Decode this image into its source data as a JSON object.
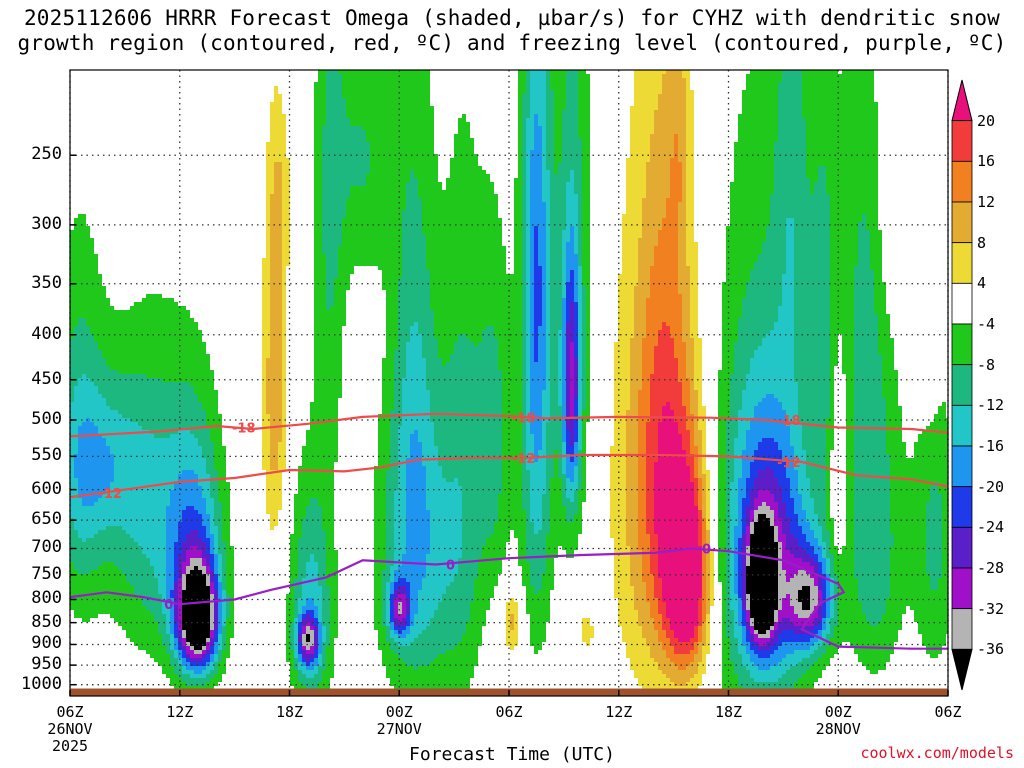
{
  "chart_data": {
    "type": "heatmap",
    "title_line1": "2025112606 HRRR Forecast Omega (shaded, µbar/s) for CYHZ with dendritic snow",
    "title_line2": "growth region (contoured, red, ºC) and freezing level (contoured, purple, ºC)",
    "xlabel": "Forecast Time (UTC)",
    "ylabel": "",
    "credit": "coolwx.com/models",
    "x_ticks": [
      {
        "hour": 0,
        "label": "06Z",
        "sub1": "26NOV",
        "sub2": "2025"
      },
      {
        "hour": 6,
        "label": "12Z",
        "sub1": "",
        "sub2": ""
      },
      {
        "hour": 12,
        "label": "18Z",
        "sub1": "",
        "sub2": ""
      },
      {
        "hour": 18,
        "label": "00Z",
        "sub1": "27NOV",
        "sub2": ""
      },
      {
        "hour": 24,
        "label": "06Z",
        "sub1": "",
        "sub2": ""
      },
      {
        "hour": 30,
        "label": "12Z",
        "sub1": "",
        "sub2": ""
      },
      {
        "hour": 36,
        "label": "18Z",
        "sub1": "",
        "sub2": ""
      },
      {
        "hour": 42,
        "label": "00Z",
        "sub1": "28NOV",
        "sub2": ""
      },
      {
        "hour": 48,
        "label": "06Z",
        "sub1": "",
        "sub2": ""
      }
    ],
    "x_range_hours": [
      0,
      48
    ],
    "y_range_hPa": [
      1030,
      200
    ],
    "y_ticks": [
      250,
      300,
      350,
      400,
      450,
      500,
      550,
      600,
      650,
      700,
      750,
      800,
      850,
      900,
      950,
      1000
    ],
    "colorbar": {
      "labels": [
        "20",
        "16",
        "12",
        "8",
        "4",
        "-4",
        "-8",
        "-12",
        "-16",
        "-20",
        "-24",
        "-28",
        "-32",
        "-36"
      ],
      "bins": [
        {
          "lo": 20,
          "hi": 24,
          "color": "#e8107a"
        },
        {
          "lo": 16,
          "hi": 20,
          "color": "#f23c3c"
        },
        {
          "lo": 12,
          "hi": 16,
          "color": "#f08020"
        },
        {
          "lo": 8,
          "hi": 12,
          "color": "#e3ab32"
        },
        {
          "lo": 4,
          "hi": 8,
          "color": "#eeda35"
        },
        {
          "lo": -4,
          "hi": 4,
          "color": "#ffffff"
        },
        {
          "lo": -8,
          "hi": -4,
          "color": "#20c81c"
        },
        {
          "lo": -12,
          "hi": -8,
          "color": "#1cb880"
        },
        {
          "lo": -16,
          "hi": -12,
          "color": "#22c6c6"
        },
        {
          "lo": -20,
          "hi": -16,
          "color": "#1e96f0"
        },
        {
          "lo": -24,
          "hi": -20,
          "color": "#1f3ae8"
        },
        {
          "lo": -28,
          "hi": -24,
          "color": "#5a1fc8"
        },
        {
          "lo": -32,
          "hi": -28,
          "color": "#a010c8"
        },
        {
          "lo": -36,
          "hi": -32,
          "color": "#b4b4b4"
        },
        {
          "lo": -40,
          "hi": -36,
          "color": "#000000"
        }
      ]
    },
    "omega_features": [
      {
        "t": 0.5,
        "p": 560,
        "wt": 1.4,
        "wp": 260,
        "v": -11
      },
      {
        "t": 4.5,
        "p": 640,
        "wt": 2.6,
        "wp": 260,
        "v": -12
      },
      {
        "t": 2.0,
        "p": 560,
        "wt": 2.0,
        "wp": 120,
        "v": -9
      },
      {
        "t": 7.0,
        "p": 840,
        "wt": 1.1,
        "wp": 110,
        "v": -40
      },
      {
        "t": 6.9,
        "p": 720,
        "wt": 1.5,
        "wp": 230,
        "v": -16
      },
      {
        "t": 11.2,
        "p": 460,
        "wt": 0.7,
        "wp": 220,
        "v": 11
      },
      {
        "t": 11.5,
        "p": 280,
        "wt": 0.6,
        "wp": 60,
        "v": 5
      },
      {
        "t": 13.2,
        "p": 820,
        "wt": 1.2,
        "wp": 260,
        "v": -14
      },
      {
        "t": 13.0,
        "p": 890,
        "wt": 0.6,
        "wp": 60,
        "v": -24
      },
      {
        "t": 14.2,
        "p": 300,
        "wt": 0.9,
        "wp": 250,
        "v": -8
      },
      {
        "t": 16.0,
        "p": 250,
        "wt": 1.6,
        "wp": 90,
        "v": -8
      },
      {
        "t": 19.0,
        "p": 720,
        "wt": 2.2,
        "wp": 300,
        "v": -14
      },
      {
        "t": 18.0,
        "p": 820,
        "wt": 0.6,
        "wp": 60,
        "v": -22
      },
      {
        "t": 18.8,
        "p": 420,
        "wt": 1.2,
        "wp": 320,
        "v": -8
      },
      {
        "t": 21.5,
        "p": 600,
        "wt": 1.2,
        "wp": 420,
        "v": -8
      },
      {
        "t": 24.2,
        "p": 850,
        "wt": 0.6,
        "wp": 70,
        "v": 10
      },
      {
        "t": 23.2,
        "p": 520,
        "wt": 1.0,
        "wp": 250,
        "v": -9
      },
      {
        "t": 25.5,
        "p": 520,
        "wt": 0.9,
        "wp": 360,
        "v": -14
      },
      {
        "t": 25.5,
        "p": 300,
        "wt": 0.8,
        "wp": 200,
        "v": -10
      },
      {
        "t": 27.4,
        "p": 460,
        "wt": 0.5,
        "wp": 150,
        "v": -22
      },
      {
        "t": 27.5,
        "p": 350,
        "wt": 1.1,
        "wp": 350,
        "v": -9
      },
      {
        "t": 28.2,
        "p": 870,
        "wt": 0.5,
        "wp": 50,
        "v": 6
      },
      {
        "t": 31.5,
        "p": 600,
        "wt": 2.2,
        "wp": 400,
        "v": 8
      },
      {
        "t": 32.5,
        "p": 430,
        "wt": 1.4,
        "wp": 320,
        "v": 5
      },
      {
        "t": 33.8,
        "p": 760,
        "wt": 1.2,
        "wp": 190,
        "v": 24
      },
      {
        "t": 33.0,
        "p": 620,
        "wt": 1.8,
        "wp": 330,
        "v": 11
      },
      {
        "t": 33.3,
        "p": 240,
        "wt": 0.6,
        "wp": 80,
        "v": 5
      },
      {
        "t": 37.5,
        "p": 650,
        "wt": 2.6,
        "wp": 460,
        "v": -10
      },
      {
        "t": 38.5,
        "p": 720,
        "wt": 2.2,
        "wp": 260,
        "v": -20
      },
      {
        "t": 37.8,
        "p": 770,
        "wt": 0.75,
        "wp": 110,
        "v": -40
      },
      {
        "t": 40.5,
        "p": 800,
        "wt": 1.2,
        "wp": 100,
        "v": -26
      },
      {
        "t": 39.5,
        "p": 260,
        "wt": 1.0,
        "wp": 180,
        "v": -8
      },
      {
        "t": 41.2,
        "p": 380,
        "wt": 0.8,
        "wp": 220,
        "v": -8
      },
      {
        "t": 42.0,
        "p": 560,
        "wt": 0.5,
        "wp": 200,
        "v": 6
      },
      {
        "t": 43.5,
        "p": 350,
        "wt": 1.6,
        "wp": 280,
        "v": -8
      },
      {
        "t": 44.0,
        "p": 720,
        "wt": 1.6,
        "wp": 260,
        "v": -10
      },
      {
        "t": 44.8,
        "p": 260,
        "wt": 0.8,
        "wp": 120,
        "v": 5
      },
      {
        "t": 47.0,
        "p": 380,
        "wt": 0.6,
        "wp": 120,
        "v": 6
      },
      {
        "t": 47.3,
        "p": 680,
        "wt": 1.2,
        "wp": 280,
        "v": -9
      }
    ],
    "contours": [
      {
        "name": "dgz-upper",
        "label": "-18",
        "color": "#f04a4a",
        "points": [
          [
            0,
            522
          ],
          [
            5,
            515
          ],
          [
            8,
            508
          ],
          [
            10,
            512
          ],
          [
            13,
            505
          ],
          [
            16,
            496
          ],
          [
            20,
            492
          ],
          [
            24,
            495
          ],
          [
            26,
            498
          ],
          [
            30,
            496
          ],
          [
            35,
            497
          ],
          [
            38,
            500
          ],
          [
            42,
            510
          ],
          [
            46,
            512
          ],
          [
            48,
            517
          ]
        ],
        "labels_at": [
          [
            9.5,
            510
          ],
          [
            24.8,
            497
          ],
          [
            39.3,
            500
          ]
        ]
      },
      {
        "name": "dgz-lower",
        "label": "-12",
        "color": "#f04a4a",
        "points": [
          [
            0,
            612
          ],
          [
            3,
            600
          ],
          [
            6,
            588
          ],
          [
            9,
            582
          ],
          [
            12,
            570
          ],
          [
            15,
            572
          ],
          [
            17,
            566
          ],
          [
            19,
            555
          ],
          [
            22,
            552
          ],
          [
            25,
            552
          ],
          [
            28,
            548
          ],
          [
            32,
            548
          ],
          [
            36,
            550
          ],
          [
            40,
            558
          ],
          [
            43,
            578
          ],
          [
            46,
            584
          ],
          [
            48,
            595
          ]
        ],
        "labels_at": [
          [
            2.2,
            605
          ],
          [
            24.8,
            552
          ],
          [
            39.3,
            558
          ]
        ]
      },
      {
        "name": "freezing-level",
        "label": "0",
        "color": "#9a1ec8",
        "points": [
          [
            0,
            795
          ],
          [
            2,
            785
          ],
          [
            4,
            795
          ],
          [
            6,
            810
          ],
          [
            9,
            800
          ],
          [
            11,
            780
          ],
          [
            14,
            755
          ],
          [
            16,
            722
          ],
          [
            20,
            730
          ],
          [
            24,
            718
          ],
          [
            28,
            712
          ],
          [
            32,
            708
          ],
          [
            34,
            700
          ],
          [
            36,
            705
          ],
          [
            39,
            722
          ],
          [
            42,
            768
          ],
          [
            42.3,
            785
          ],
          [
            41,
            808
          ],
          [
            40,
            865
          ],
          [
            42,
            905
          ],
          [
            46,
            910
          ],
          [
            48,
            910
          ]
        ],
        "labels_at": [
          [
            5.4,
            810
          ],
          [
            20.8,
            730
          ],
          [
            34.8,
            700
          ]
        ]
      }
    ],
    "ground_top_hPa": 1010
  },
  "icons": {
    "colorbar_top": "triangle-up-icon",
    "colorbar_bottom": "triangle-down-icon"
  }
}
